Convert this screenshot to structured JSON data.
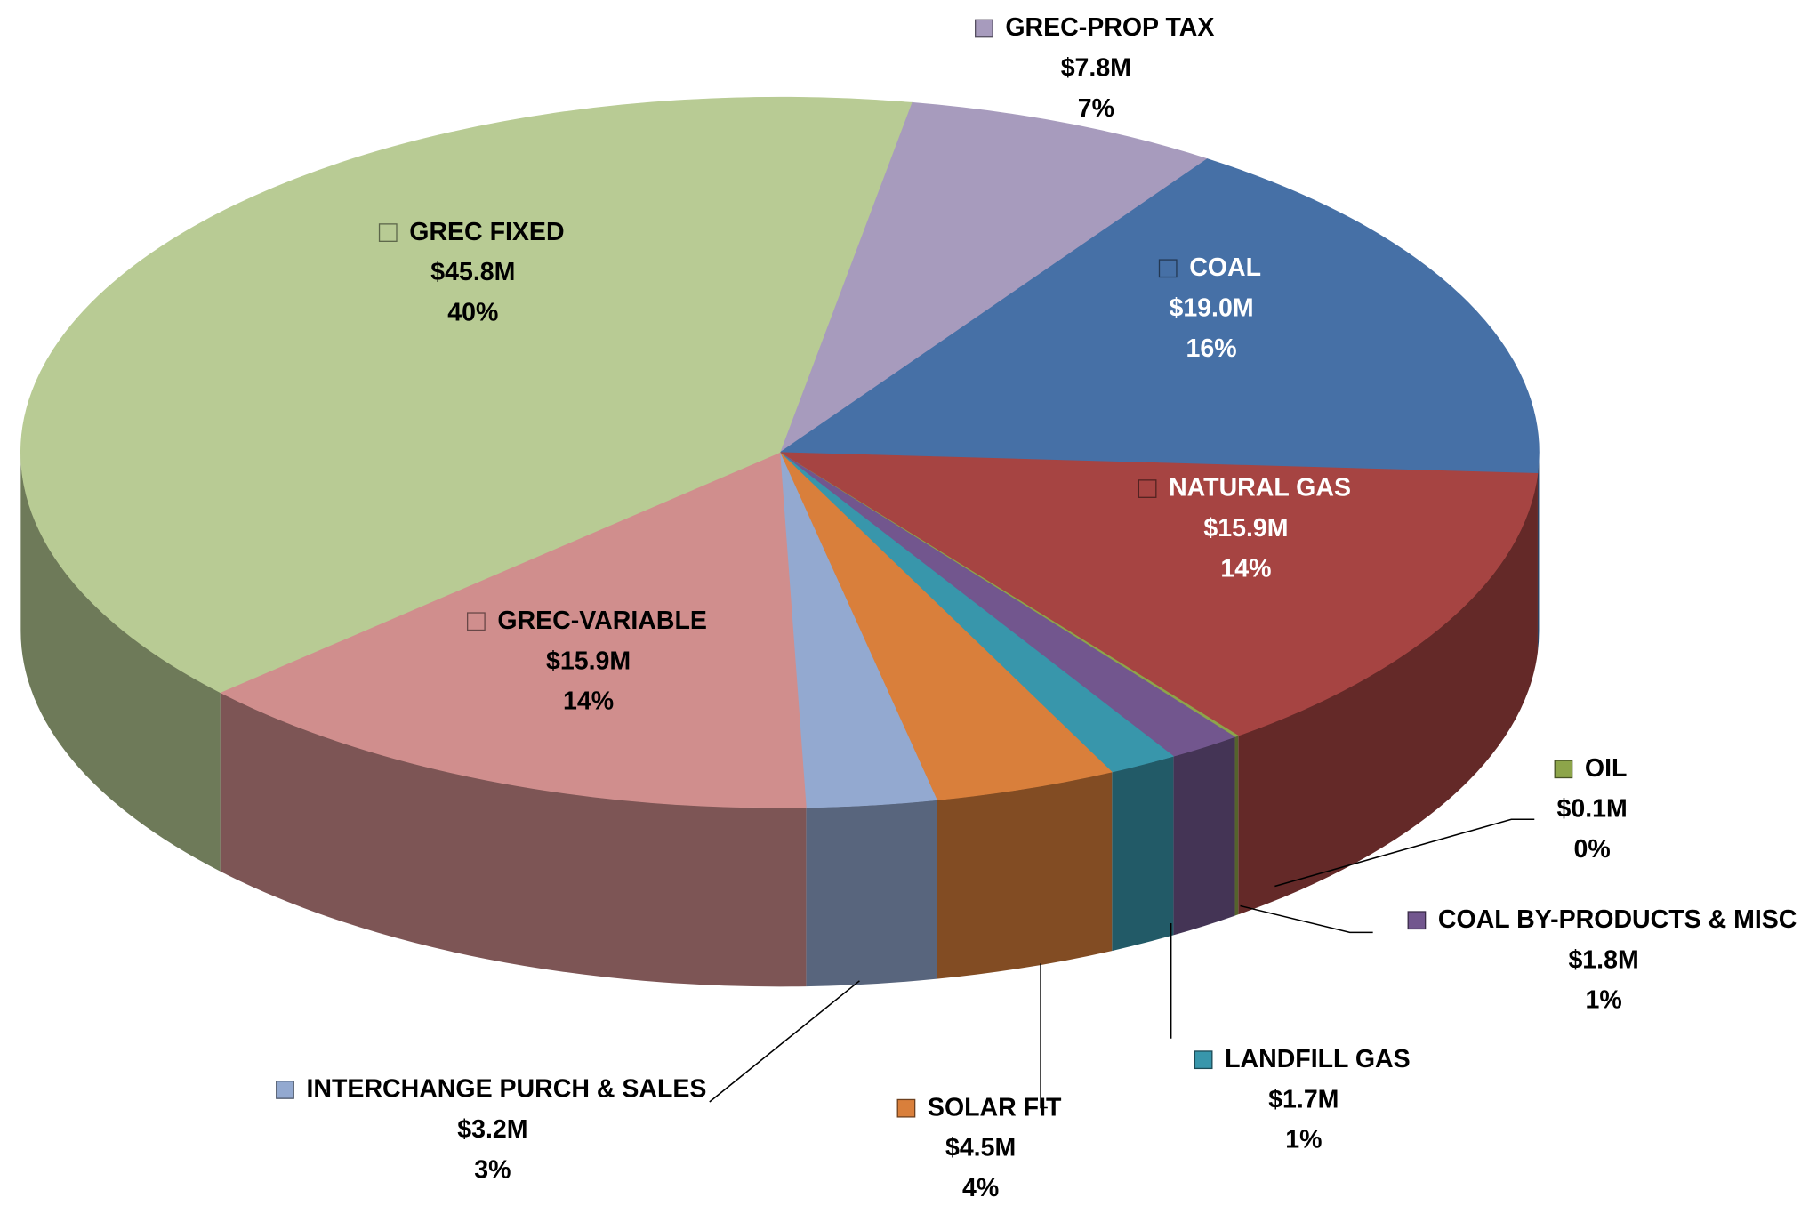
{
  "chart_data": {
    "type": "pie",
    "categories": [
      "GREC-PROP TAX",
      "COAL",
      "NATURAL GAS",
      "OIL",
      "COAL BY-PRODUCTS & MISC",
      "LANDFILL GAS",
      "SOLAR FIT",
      "INTERCHANGE PURCH & SALES",
      "GREC-VARIABLE",
      "GREC FIXED"
    ],
    "values": [
      7.8,
      19.0,
      15.9,
      0.1,
      1.8,
      1.7,
      4.5,
      3.2,
      15.9,
      45.8
    ],
    "value_labels": [
      "$7.8M",
      "$19.0M",
      "$15.9M",
      "$0.1M",
      "$1.8M",
      "$1.7M",
      "$4.5M",
      "$3.2M",
      "$15.9M",
      "$45.8M"
    ],
    "percent_labels": [
      "7%",
      "16%",
      "14%",
      "0%",
      "1%",
      "1%",
      "4%",
      "3%",
      "14%",
      "40%"
    ],
    "colors": [
      "#a79bbd",
      "#4670a6",
      "#a64442",
      "#8da54a",
      "#72568e",
      "#3896ab",
      "#d97f3b",
      "#93a9d0",
      "#d08e8d",
      "#b8cb94"
    ]
  }
}
